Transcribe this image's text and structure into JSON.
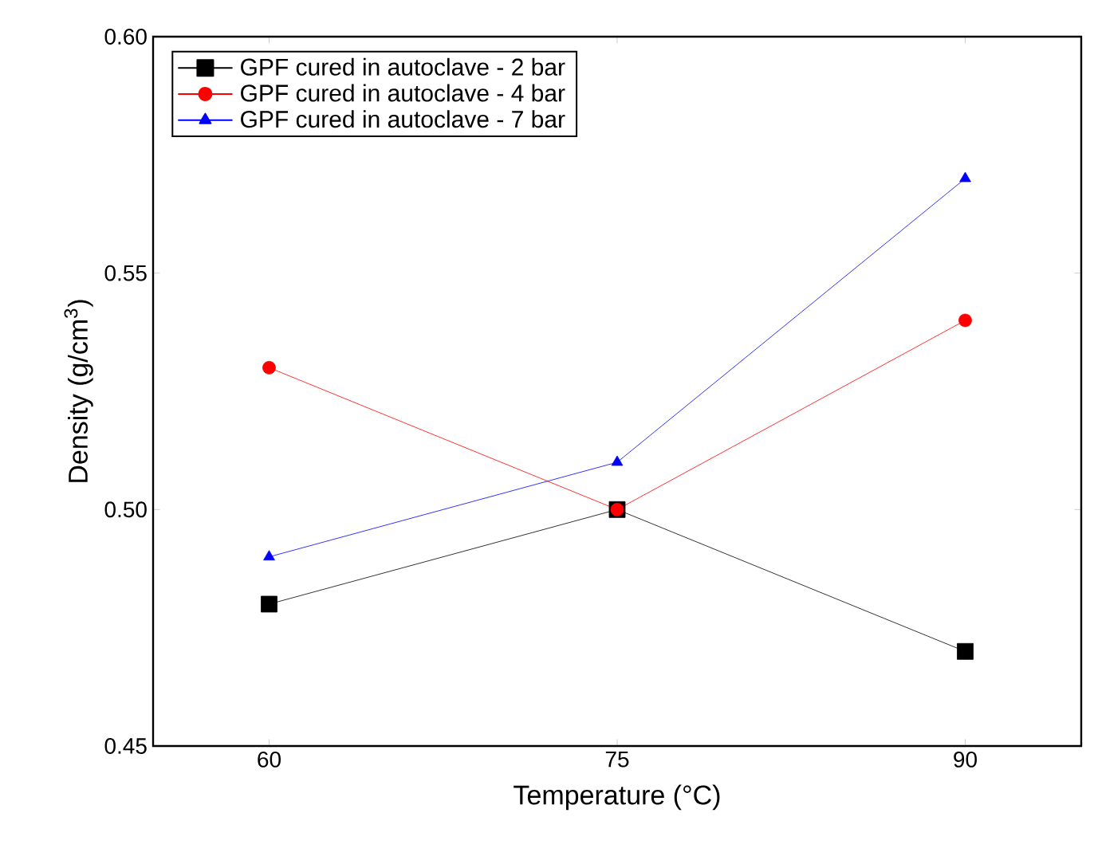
{
  "chart_data": {
    "type": "line",
    "xlabel": "Temperature (°C)",
    "ylabel": "Density (g/cm$^{3}$)",
    "x": [
      60,
      75,
      90
    ],
    "xlim": [
      55,
      95
    ],
    "xticks": [
      60,
      75,
      90
    ],
    "ylim": [
      0.45,
      0.6
    ],
    "yticks": [
      {
        "value": 0.45,
        "label": "0.45"
      },
      {
        "value": 0.5,
        "label": "0.50"
      },
      {
        "value": 0.55,
        "label": "0.55"
      },
      {
        "value": 0.6,
        "label": "0.60"
      }
    ],
    "legend": "top left",
    "grid": false,
    "series": [
      {
        "name": "GPF cured in autoclave - 2 bar",
        "color": "#000000",
        "marker": "square",
        "values": [
          0.48,
          0.5,
          0.47
        ]
      },
      {
        "name": "GPF cured in autoclave - 4 bar",
        "color": "#ff0000",
        "marker": "circle",
        "values": [
          0.53,
          0.5,
          0.54
        ]
      },
      {
        "name": "GPF cured in autoclave - 7 bar",
        "color": "#0000ff",
        "marker": "triangle",
        "values": [
          0.49,
          0.51,
          0.57
        ]
      }
    ]
  }
}
